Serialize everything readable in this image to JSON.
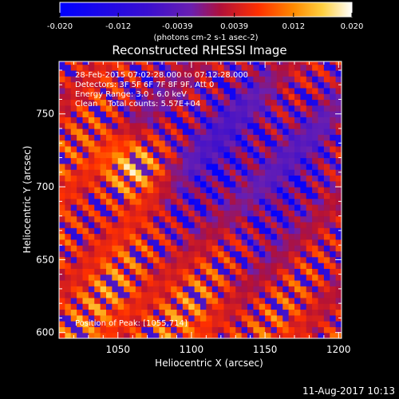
{
  "chart_data": {
    "type": "heatmap",
    "title": "Reconstructed RHESSI Image",
    "xlabel": "Heliocentric X (arcsec)",
    "ylabel": "Heliocentric Y (arcsec)",
    "xlim": [
      1010,
      1202
    ],
    "ylim": [
      596,
      786
    ],
    "x_ticks": [
      1050,
      1100,
      1150,
      1200
    ],
    "y_ticks": [
      600,
      650,
      700,
      750
    ],
    "colorbar": {
      "range": [
        -0.02,
        0.02
      ],
      "tick_labels": [
        "-0.020",
        "-0.012",
        "-0.0039",
        "0.0039",
        "0.012",
        "0.020"
      ],
      "tick_values": [
        -0.02,
        -0.012,
        -0.0039,
        0.0039,
        0.012,
        0.02
      ],
      "unit_label": "(photons cm-2 s-1 asec-2)",
      "colors": [
        "#0000ff",
        "#6a1fb0",
        "#c0002a",
        "#ff4a00",
        "#ffb000",
        "#ffffff"
      ]
    },
    "annotations": [
      "28-Feb-2015 07:02:28.000 to 07:12:28.000",
      "Detectors: 3F 5F 6F 7F 8F 9F, Att 0",
      "Energy Range: 3.0 - 6.0 keV",
      "Clean    Total counts: 5.57E+04"
    ],
    "peak_label": "Position of Peak: [1055,714]",
    "peak": {
      "x": 1055,
      "y": 714
    },
    "grid": false
  },
  "footer": {
    "timestamp": "11-Aug-2017 10:13"
  }
}
